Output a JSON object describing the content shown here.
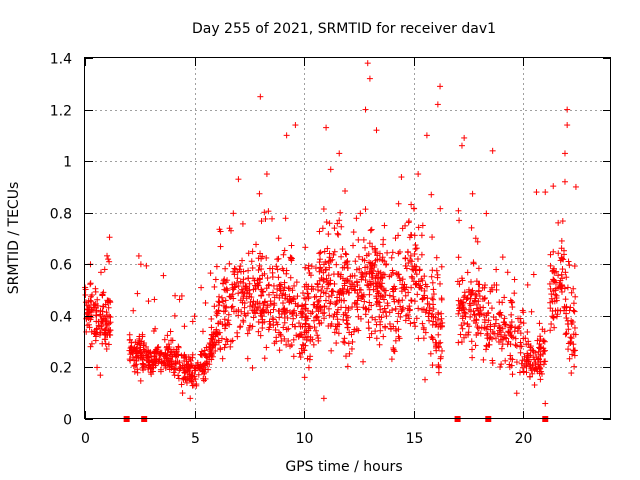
{
  "chart_data": {
    "type": "scatter",
    "title": "Day 255 of 2021, SRMTID for receiver dav1",
    "xlabel": "GPS time / hours",
    "ylabel": "SRMTID / TECUs",
    "xlim": [
      0,
      24
    ],
    "ylim": [
      0,
      1.4
    ],
    "xticks": [
      0,
      5,
      10,
      15,
      20
    ],
    "yticks": [
      0,
      0.2,
      0.4,
      0.6,
      0.8,
      1,
      1.2,
      1.4
    ],
    "ytick_labels": [
      "0",
      "0.2",
      "0.4",
      "0.6",
      "0.8",
      "1",
      "1.2",
      "1.4"
    ],
    "grid": true,
    "marker": "+",
    "color": "#ff0000",
    "data_gaps_x": [
      1.9,
      2.7,
      17.0,
      18.4,
      21.0
    ],
    "segments": [
      {
        "start": 0.0,
        "end": 1.2,
        "n": 130,
        "levels": [
          [
            0.0,
            0.42
          ],
          [
            0.5,
            0.38
          ],
          [
            1.0,
            0.38
          ],
          [
            1.2,
            0.4
          ]
        ],
        "spread": 0.08,
        "outliers": [
          [
            0.25,
            0.6
          ],
          [
            0.9,
            0.58
          ],
          [
            1.1,
            0.61
          ],
          [
            0.55,
            0.2
          ],
          [
            0.7,
            0.17
          ]
        ]
      },
      {
        "start": 2.0,
        "end": 6.0,
        "n": 380,
        "levels": [
          [
            2.0,
            0.28
          ],
          [
            3.0,
            0.24
          ],
          [
            4.0,
            0.24
          ],
          [
            5.0,
            0.17
          ],
          [
            5.4,
            0.2
          ],
          [
            6.0,
            0.33
          ]
        ],
        "spread": 0.05,
        "outliers": [
          [
            2.2,
            0.42
          ],
          [
            4.8,
            0.08
          ],
          [
            5.5,
            0.45
          ],
          [
            3.2,
            0.35
          ],
          [
            4.1,
            0.4
          ]
        ]
      },
      {
        "start": 6.0,
        "end": 10.0,
        "n": 380,
        "levels": [
          [
            6.0,
            0.35
          ],
          [
            7.0,
            0.5
          ],
          [
            8.0,
            0.45
          ],
          [
            9.0,
            0.45
          ],
          [
            9.5,
            0.4
          ],
          [
            10.0,
            0.35
          ]
        ],
        "spread": 0.12,
        "outliers": [
          [
            7.0,
            0.93
          ],
          [
            8.0,
            1.25
          ],
          [
            9.2,
            1.1
          ],
          [
            9.6,
            1.14
          ],
          [
            8.3,
            0.95
          ]
        ]
      },
      {
        "start": 10.0,
        "end": 14.0,
        "n": 440,
        "levels": [
          [
            10.0,
            0.35
          ],
          [
            11.0,
            0.55
          ],
          [
            12.0,
            0.45
          ],
          [
            13.0,
            0.55
          ],
          [
            14.0,
            0.45
          ]
        ],
        "spread": 0.15,
        "outliers": [
          [
            11.0,
            1.13
          ],
          [
            12.9,
            1.38
          ],
          [
            13.0,
            1.32
          ],
          [
            12.8,
            1.2
          ],
          [
            13.3,
            1.12
          ],
          [
            11.6,
            1.03
          ],
          [
            10.9,
            0.08
          ]
        ]
      },
      {
        "start": 14.0,
        "end": 16.3,
        "n": 220,
        "levels": [
          [
            14.0,
            0.45
          ],
          [
            15.0,
            0.55
          ],
          [
            16.0,
            0.35
          ],
          [
            16.3,
            0.38
          ]
        ],
        "spread": 0.15,
        "outliers": [
          [
            15.6,
            1.1
          ],
          [
            16.2,
            1.29
          ],
          [
            16.1,
            1.22
          ],
          [
            15.2,
            0.95
          ],
          [
            15.8,
            0.87
          ]
        ]
      },
      {
        "start": 17.0,
        "end": 20.0,
        "n": 250,
        "levels": [
          [
            17.0,
            0.45
          ],
          [
            18.0,
            0.4
          ],
          [
            19.0,
            0.35
          ],
          [
            20.0,
            0.3
          ]
        ],
        "spread": 0.1,
        "outliers": [
          [
            17.2,
            1.06
          ],
          [
            18.6,
            1.04
          ],
          [
            17.3,
            1.09
          ],
          [
            19.7,
            0.1
          ]
        ]
      },
      {
        "start": 20.0,
        "end": 21.0,
        "n": 90,
        "levels": [
          [
            20.0,
            0.27
          ],
          [
            20.5,
            0.22
          ],
          [
            21.0,
            0.25
          ]
        ],
        "spread": 0.07,
        "outliers": [
          [
            20.6,
            0.88
          ],
          [
            21.0,
            0.88
          ],
          [
            21.0,
            0.06
          ],
          [
            20.2,
            0.52
          ]
        ]
      },
      {
        "start": 21.2,
        "end": 22.4,
        "n": 120,
        "levels": [
          [
            21.2,
            0.45
          ],
          [
            21.8,
            0.6
          ],
          [
            22.1,
            0.3
          ],
          [
            22.4,
            0.4
          ]
        ],
        "spread": 0.13,
        "outliers": [
          [
            22.0,
            1.2
          ],
          [
            22.0,
            1.14
          ],
          [
            21.9,
            1.03
          ],
          [
            22.4,
            0.9
          ],
          [
            21.9,
            0.92
          ]
        ]
      }
    ]
  }
}
